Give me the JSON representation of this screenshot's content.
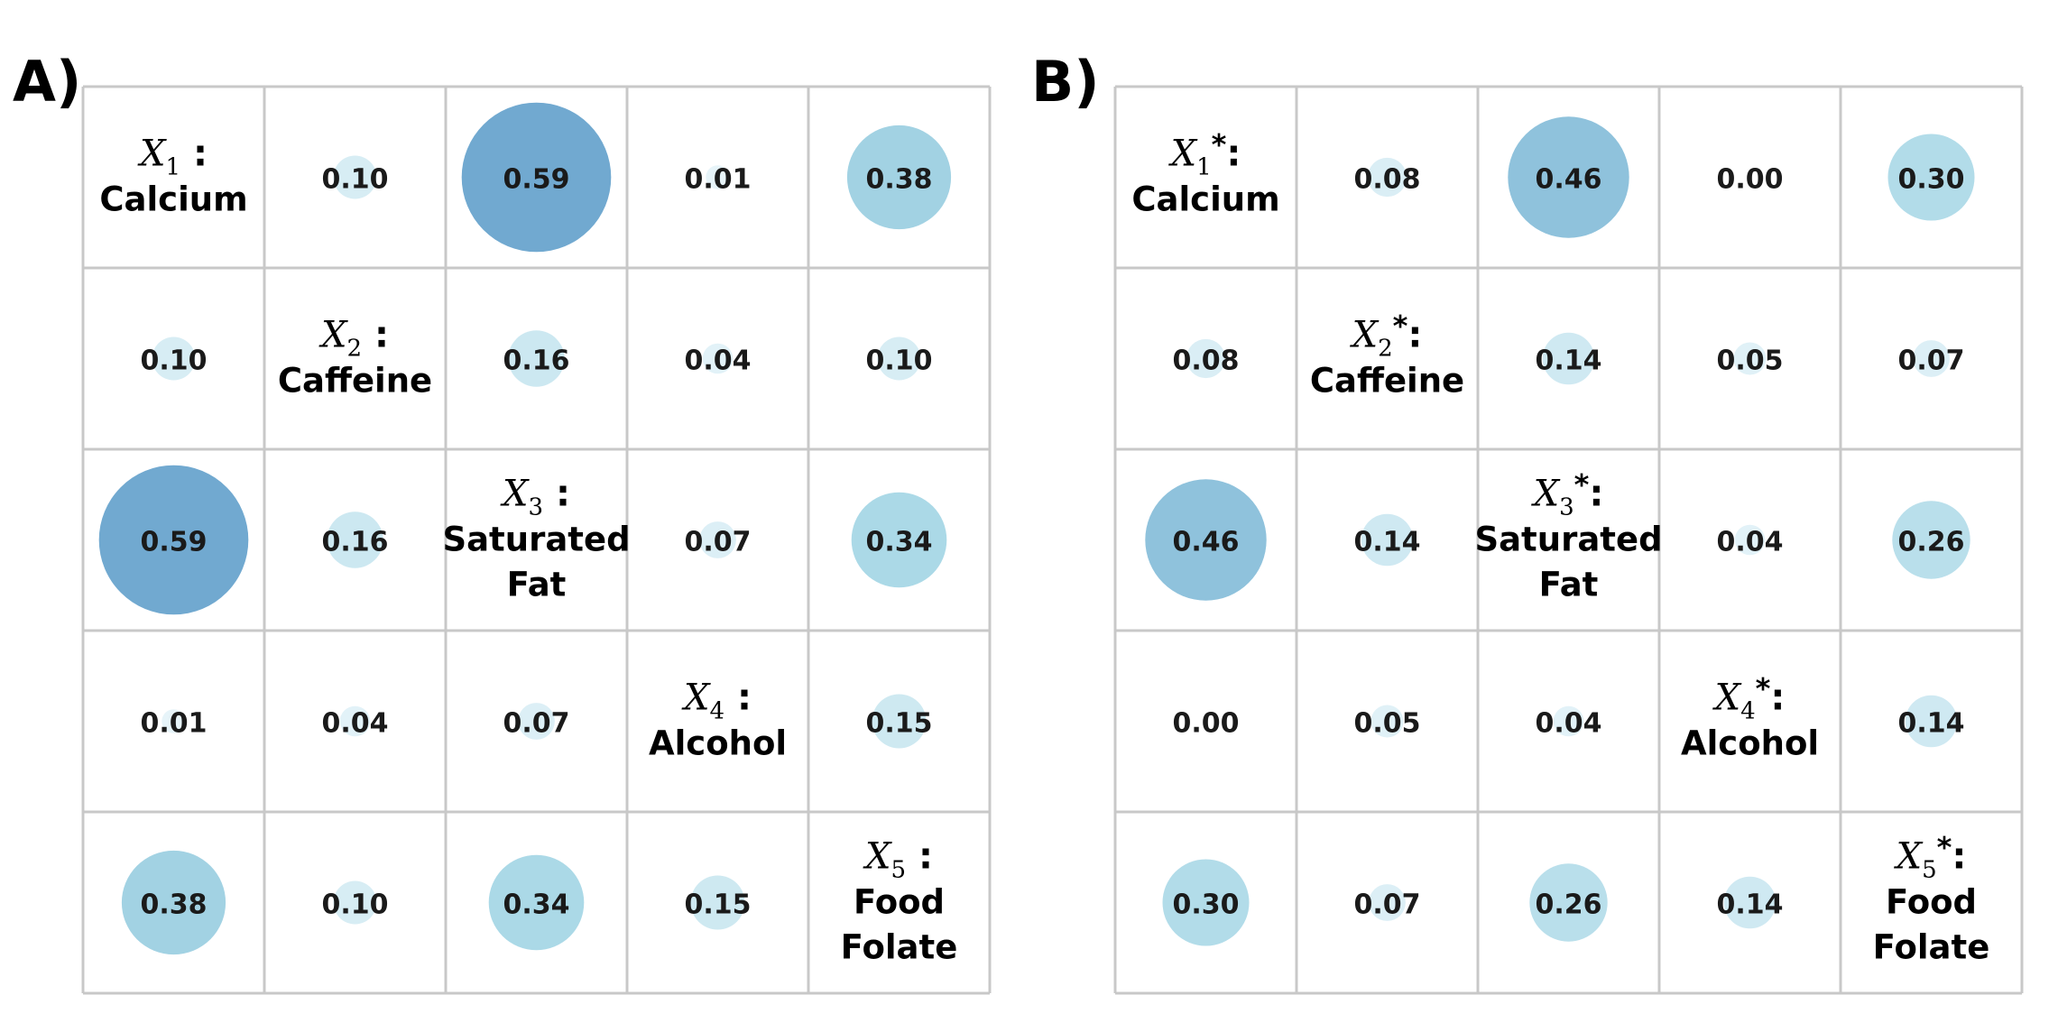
{
  "panels": [
    {
      "label": "A)",
      "variables": [
        {
          "symbol": "X",
          "sub": "1",
          "star": "",
          "name_lines": [
            "Calcium"
          ]
        },
        {
          "symbol": "X",
          "sub": "2",
          "star": "",
          "name_lines": [
            "Caffeine"
          ]
        },
        {
          "symbol": "X",
          "sub": "3",
          "star": "",
          "name_lines": [
            "Saturated",
            "Fat"
          ]
        },
        {
          "symbol": "X",
          "sub": "4",
          "star": "",
          "name_lines": [
            "Alcohol"
          ]
        },
        {
          "symbol": "X",
          "sub": "5",
          "star": "",
          "name_lines": [
            "Food",
            "Folate"
          ]
        }
      ],
      "matrix": [
        [
          null,
          0.1,
          0.59,
          0.01,
          0.38
        ],
        [
          0.1,
          null,
          0.16,
          0.04,
          0.1
        ],
        [
          0.59,
          0.16,
          null,
          0.07,
          0.34
        ],
        [
          0.01,
          0.04,
          0.07,
          null,
          0.15
        ],
        [
          0.38,
          0.1,
          0.34,
          0.15,
          null
        ]
      ]
    },
    {
      "label": "B)",
      "variables": [
        {
          "symbol": "X",
          "sub": "1",
          "star": "*",
          "name_lines": [
            "Calcium"
          ]
        },
        {
          "symbol": "X",
          "sub": "2",
          "star": "*",
          "name_lines": [
            "Caffeine"
          ]
        },
        {
          "symbol": "X",
          "sub": "3",
          "star": "*",
          "name_lines": [
            "Saturated",
            "Fat"
          ]
        },
        {
          "symbol": "X",
          "sub": "4",
          "star": "*",
          "name_lines": [
            "Alcohol"
          ]
        },
        {
          "symbol": "X",
          "sub": "5",
          "star": "*",
          "name_lines": [
            "Food",
            "Folate"
          ]
        }
      ],
      "matrix": [
        [
          null,
          0.08,
          0.46,
          0.0,
          0.3
        ],
        [
          0.08,
          null,
          0.14,
          0.05,
          0.07
        ],
        [
          0.46,
          0.14,
          null,
          0.04,
          0.26
        ],
        [
          0.0,
          0.05,
          0.04,
          null,
          0.14
        ],
        [
          0.3,
          0.07,
          0.26,
          0.14,
          null
        ]
      ]
    }
  ],
  "chart_data": [
    {
      "type": "heatmap",
      "title": "A)",
      "categories": [
        "Calcium",
        "Caffeine",
        "Saturated Fat",
        "Alcohol",
        "Food Folate"
      ],
      "values": [
        [
          null,
          0.1,
          0.59,
          0.01,
          0.38
        ],
        [
          0.1,
          null,
          0.16,
          0.04,
          0.1
        ],
        [
          0.59,
          0.16,
          null,
          0.07,
          0.34
        ],
        [
          0.01,
          0.04,
          0.07,
          null,
          0.15
        ],
        [
          0.38,
          0.1,
          0.34,
          0.15,
          null
        ]
      ]
    },
    {
      "type": "heatmap",
      "title": "B)",
      "categories": [
        "Calcium",
        "Caffeine",
        "Saturated Fat",
        "Alcohol",
        "Food Folate"
      ],
      "values": [
        [
          null,
          0.08,
          0.46,
          0.0,
          0.3
        ],
        [
          0.08,
          null,
          0.14,
          0.05,
          0.07
        ],
        [
          0.46,
          0.14,
          null,
          0.04,
          0.26
        ],
        [
          0.0,
          0.05,
          0.04,
          null,
          0.14
        ],
        [
          0.3,
          0.07,
          0.26,
          0.14,
          null
        ]
      ]
    }
  ],
  "colors": {
    "grid": "#c8c8c8",
    "bubble_low": "#e9f5fa",
    "bubble_mid": "#a9d8e6",
    "bubble_high": "#6fa7cf",
    "text": "#1a1a1a"
  }
}
